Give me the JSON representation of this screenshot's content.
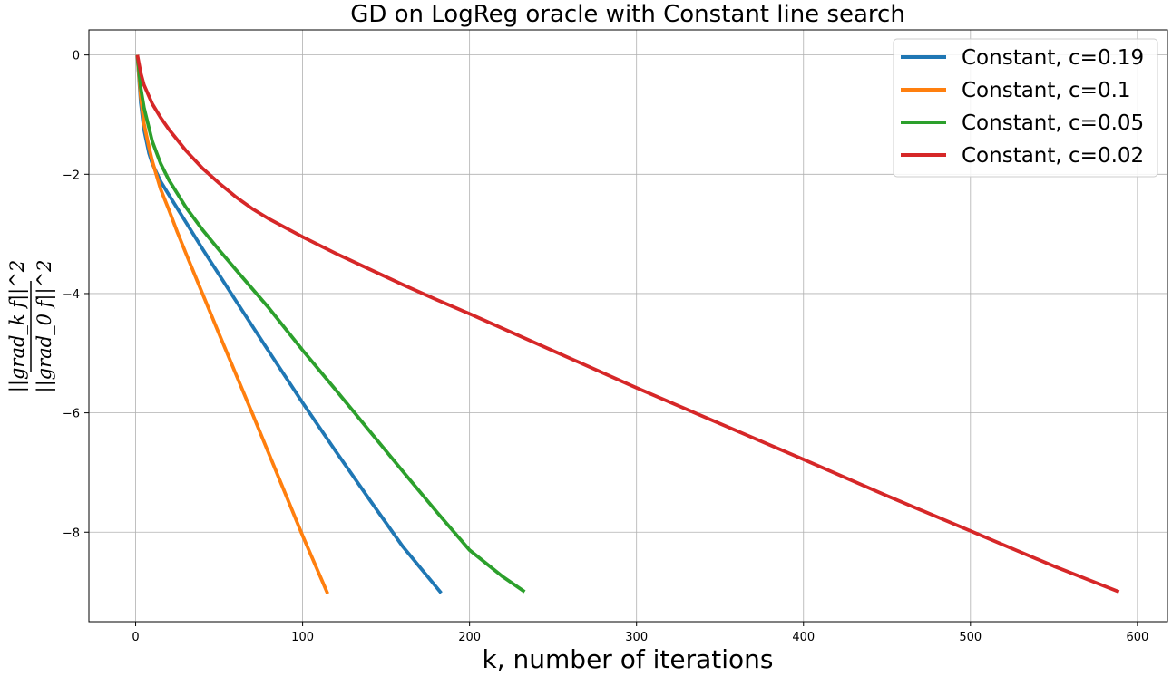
{
  "chart_data": {
    "type": "line",
    "title": "GD on LogReg oracle with Constant line search",
    "xlabel": "k, number of iterations",
    "ylabel": {
      "numerator": "||grad_k f||^2",
      "denominator": "||grad_0 f||^2"
    },
    "xlim": [
      -28,
      618
    ],
    "ylim": [
      -9.5,
      0.42
    ],
    "xticks": [
      0,
      100,
      200,
      300,
      400,
      500,
      600
    ],
    "yticks": [
      0,
      -2,
      -4,
      -6,
      -8
    ],
    "grid": true,
    "legend_position": "top-right",
    "series": [
      {
        "name": "Constant, c=0.19",
        "color": "#1f77b4",
        "x": [
          1,
          3,
          5,
          8,
          10,
          15,
          20,
          30,
          40,
          60,
          80,
          100,
          120,
          140,
          160,
          183
        ],
        "y": [
          0,
          -0.8,
          -1.25,
          -1.65,
          -1.82,
          -2.12,
          -2.35,
          -2.8,
          -3.25,
          -4.12,
          -4.98,
          -5.83,
          -6.65,
          -7.45,
          -8.24,
          -9.02
        ]
      },
      {
        "name": "Constant, c=0.1",
        "color": "#ff7f0e",
        "x": [
          1,
          3,
          5,
          8,
          10,
          15,
          20,
          25,
          30,
          40,
          50,
          60,
          70,
          80,
          90,
          100,
          115
        ],
        "y": [
          0,
          -0.7,
          -1.15,
          -1.55,
          -1.78,
          -2.25,
          -2.6,
          -2.97,
          -3.32,
          -4.0,
          -4.68,
          -5.35,
          -6.02,
          -6.7,
          -7.38,
          -8.06,
          -9.03
        ]
      },
      {
        "name": "Constant, c=0.05",
        "color": "#2ca02c",
        "x": [
          1,
          3,
          5,
          10,
          15,
          20,
          30,
          40,
          50,
          60,
          80,
          100,
          120,
          140,
          160,
          180,
          200,
          220,
          233
        ],
        "y": [
          0,
          -0.55,
          -0.88,
          -1.45,
          -1.82,
          -2.1,
          -2.55,
          -2.93,
          -3.27,
          -3.6,
          -4.25,
          -4.95,
          -5.62,
          -6.3,
          -6.98,
          -7.65,
          -8.3,
          -8.75,
          -9.0
        ]
      },
      {
        "name": "Constant, c=0.02",
        "color": "#d62728",
        "x": [
          1,
          3,
          5,
          10,
          15,
          20,
          30,
          40,
          50,
          60,
          70,
          80,
          100,
          120,
          140,
          160,
          180,
          200,
          250,
          300,
          350,
          400,
          450,
          500,
          550,
          589
        ],
        "y": [
          0,
          -0.3,
          -0.5,
          -0.82,
          -1.05,
          -1.25,
          -1.6,
          -1.9,
          -2.15,
          -2.38,
          -2.58,
          -2.75,
          -3.05,
          -3.33,
          -3.59,
          -3.85,
          -4.1,
          -4.34,
          -4.96,
          -5.58,
          -6.18,
          -6.78,
          -7.39,
          -7.98,
          -8.57,
          -9.0
        ]
      }
    ]
  }
}
